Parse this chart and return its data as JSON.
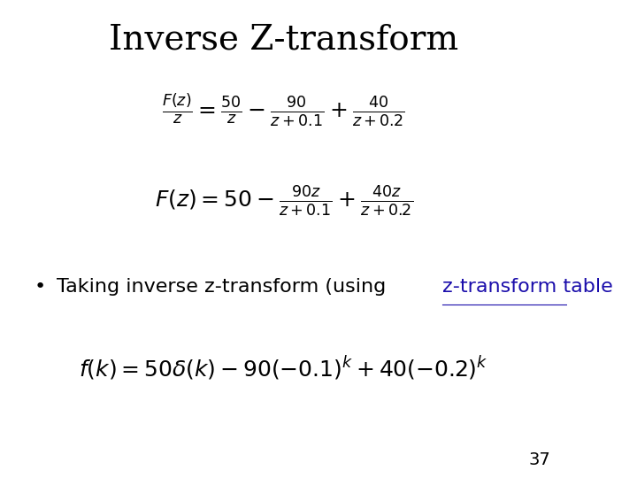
{
  "title": "Inverse Z-transform",
  "title_fontsize": 28,
  "title_fontfamily": "serif",
  "bg_color": "#ffffff",
  "eq1": "\\frac{F(z)}{z} = \\frac{50}{z} - \\frac{90}{z + 0.1} + \\frac{40}{z + 0.2}",
  "eq2": "F(z) = 50 - \\frac{90z}{z + 0.1} + \\frac{40z}{z + 0.2}",
  "bullet_text_normal": "Taking inverse z-transform (using ",
  "bullet_text_link": "z-transform table",
  "bullet_text_end": ")",
  "eq3": "f(k) = 50\\delta(k) - 90(-0.1)^k + 40(-0.2)^k",
  "page_number": "37",
  "eq_fontsize": 18,
  "bullet_fontsize": 16,
  "page_fontsize": 14,
  "text_color": "#000000",
  "link_color": "#1a0dab"
}
